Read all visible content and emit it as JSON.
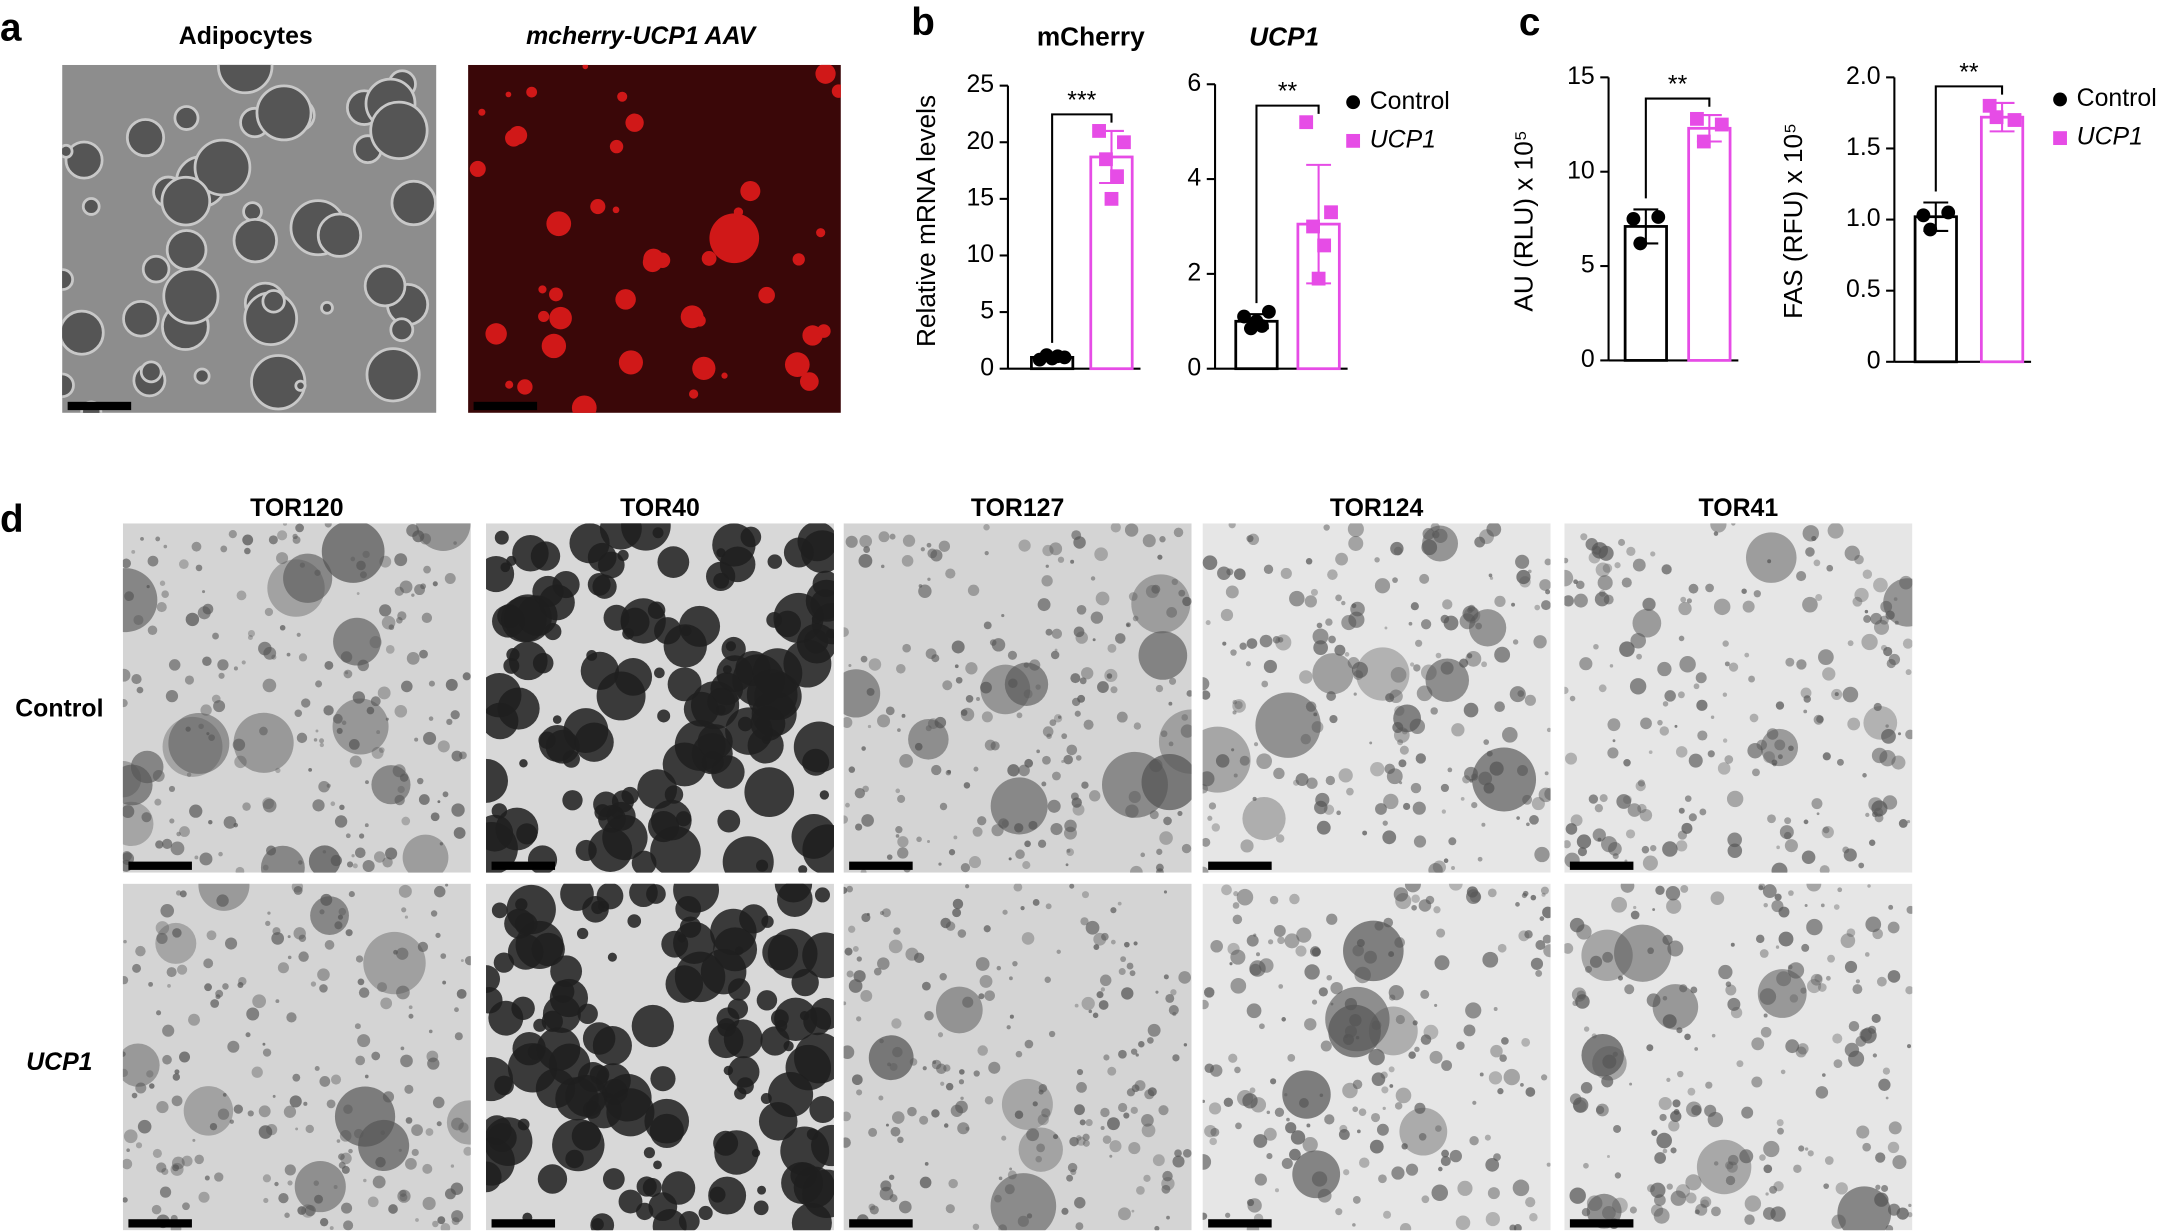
{
  "panel_letters": [
    "a",
    "b",
    "c",
    "d"
  ],
  "panel_a": {
    "titles": [
      "Adipocytes",
      "mcherry-UCP1 AAV"
    ]
  },
  "panel_d": {
    "columns": [
      "TOR120",
      "TOR40",
      "TOR127",
      "TOR124",
      "TOR41"
    ],
    "rows": [
      "Control",
      "UCP1"
    ]
  },
  "chart_data": [
    {
      "type": "bar",
      "title": "mCherry",
      "ylabel": "Relative mRNA levels",
      "categories": [
        "Control",
        "UCP1"
      ],
      "values": [
        1.0,
        18.7
      ],
      "errors": [
        0.3,
        2.3
      ],
      "points": [
        [
          0.8,
          1.0,
          1.2,
          1.1,
          0.9
        ],
        [
          21,
          20,
          18.5,
          17,
          15
        ]
      ],
      "colors": [
        "#000000",
        "#e64ce6"
      ],
      "ylim": [
        0,
        25
      ],
      "yticks": [
        0,
        5,
        10,
        15,
        20,
        25
      ],
      "significance": "***"
    },
    {
      "type": "bar",
      "title": "UCP1",
      "categories": [
        "Control",
        "UCP1"
      ],
      "values": [
        1.0,
        3.05
      ],
      "errors": [
        0.15,
        1.25
      ],
      "points": [
        [
          1.1,
          1.2,
          0.85,
          0.9,
          1.0
        ],
        [
          5.2,
          3.3,
          3.0,
          2.6,
          1.9
        ]
      ],
      "colors": [
        "#000000",
        "#e64ce6"
      ],
      "ylim": [
        0,
        6
      ],
      "yticks": [
        0,
        2,
        4,
        6
      ],
      "significance": "**",
      "legend": "right"
    },
    {
      "type": "bar",
      "ylabel": "AU (RLU) x 10⁵",
      "categories": [
        "Control",
        "UCP1"
      ],
      "values": [
        7.1,
        12.3
      ],
      "errors": [
        0.9,
        0.7
      ],
      "points": [
        [
          7.5,
          7.6,
          6.2
        ],
        [
          12.8,
          12.5,
          11.6
        ]
      ],
      "colors": [
        "#000000",
        "#e64ce6"
      ],
      "ylim": [
        0,
        15
      ],
      "yticks": [
        0,
        5,
        10,
        15
      ],
      "significance": "**"
    },
    {
      "type": "bar",
      "ylabel": "FAS (RFU) x 10⁵",
      "categories": [
        "Control",
        "UCP1"
      ],
      "values": [
        1.02,
        1.72
      ],
      "errors": [
        0.1,
        0.1
      ],
      "points": [
        [
          1.03,
          1.05,
          0.93
        ],
        [
          1.8,
          1.7,
          1.72
        ]
      ],
      "colors": [
        "#000000",
        "#e64ce6"
      ],
      "ylim": [
        0,
        2.0
      ],
      "yticks": [
        0,
        0.5,
        {
          "value": 1.0,
          "label": "1.0"
        },
        1.5,
        {
          "value": 2.0,
          "label": "2.0"
        }
      ],
      "significance": "**",
      "legend": "right"
    }
  ]
}
